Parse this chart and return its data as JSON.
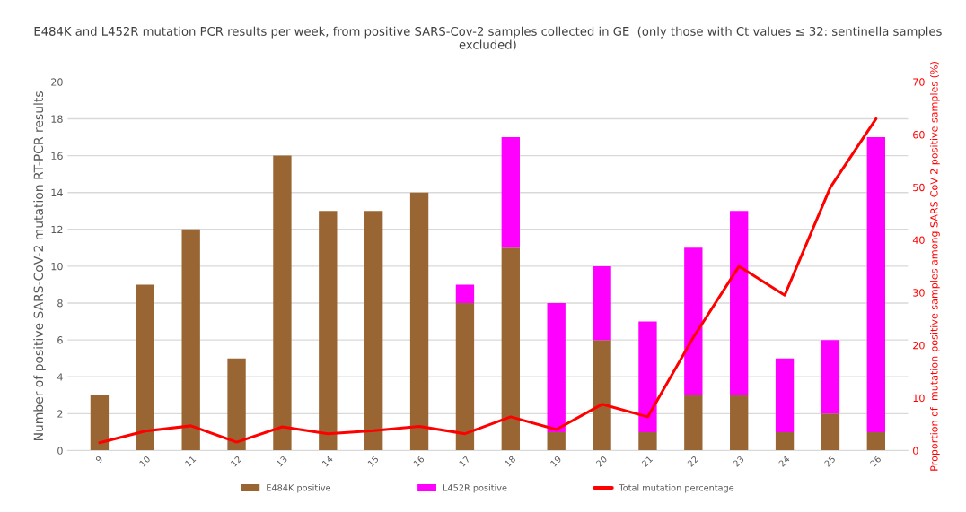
{
  "chart_data": {
    "type": "bar",
    "stacked": true,
    "title": "E484K and L452R mutation PCR results per week, from positive SARS-Cov-2 samples collected in GE  (only those with Ct values ≤ 32: sentinella samples excluded)",
    "ylabel": "Number of positive SARS-CoV-2 mutation RT-PCR results",
    "y2label": "Proportion of  mutation-positive samples among SARS-CoV-2 positive samples (%)",
    "categories": [
      "9",
      "10",
      "11",
      "12",
      "13",
      "14",
      "15",
      "16",
      "17",
      "18",
      "19",
      "20",
      "21",
      "22",
      "23",
      "24",
      "25",
      "26"
    ],
    "series": [
      {
        "name": "E484K positive",
        "color": "#996633",
        "values": [
          3,
          9,
          12,
          5,
          16,
          13,
          13,
          14,
          8,
          11,
          1,
          6,
          1,
          3,
          3,
          1,
          2,
          1
        ]
      },
      {
        "name": "L452R positive",
        "color": "#ff00ff",
        "values": [
          0,
          0,
          0,
          0,
          0,
          0,
          0,
          0,
          1,
          6,
          7,
          4,
          6,
          8,
          10,
          4,
          4,
          16
        ]
      },
      {
        "name": "Total mutation percentage",
        "type": "line",
        "axis": "y2",
        "color": "#ff0000",
        "values": [
          1.5,
          3.7,
          4.7,
          1.6,
          4.5,
          3.2,
          3.8,
          4.6,
          3.2,
          6.4,
          4.0,
          8.8,
          6.4,
          21.5,
          35,
          29.5,
          50,
          63
        ]
      }
    ],
    "ylim": [
      0,
      20
    ],
    "yticks": [
      0,
      2,
      4,
      6,
      8,
      10,
      12,
      14,
      16,
      18,
      20
    ],
    "y2lim": [
      0,
      70
    ],
    "y2ticks": [
      0,
      10,
      20,
      30,
      40,
      50,
      60,
      70
    ],
    "grid": "y",
    "legend": "bottom"
  }
}
